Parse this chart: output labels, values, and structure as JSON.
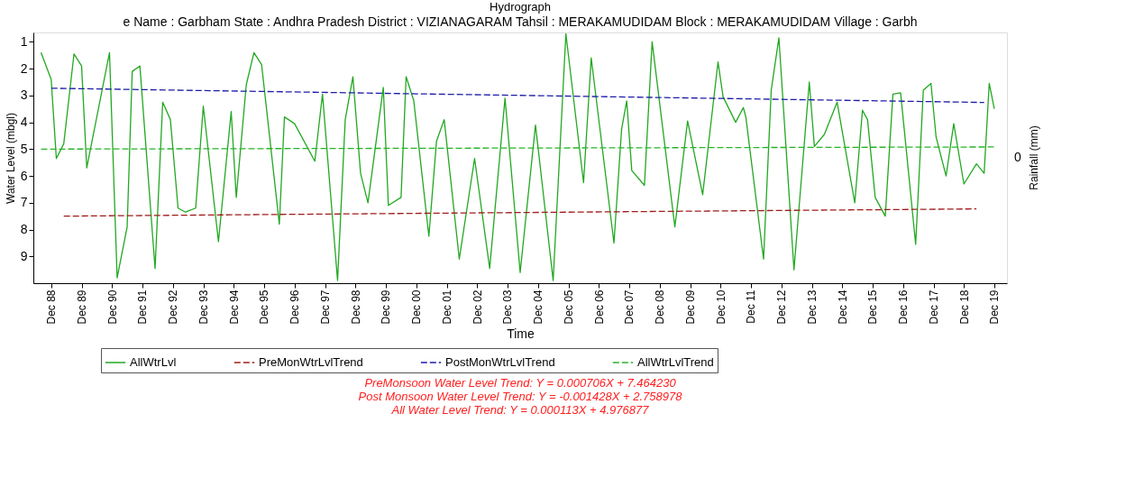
{
  "chart_data": {
    "type": "line",
    "title": "Hydrograph",
    "subtitle": "e Name : Garbham  State : Andhra Pradesh District : VIZIANAGARAM  Tahsil : MERAKAMUDIDAM  Block : MERAKAMUDIDAM Village : Garbh",
    "xlabel": "Time",
    "ylabel": "Water Level (mbgl)",
    "y2label": "Rainfall (mm)",
    "ylim": [
      10,
      0.65
    ],
    "yticks": [
      1,
      2,
      3,
      4,
      5,
      6,
      7,
      8,
      9
    ],
    "xlim": [
      "1988-05",
      "2020-05"
    ],
    "xticks": [
      {
        "value": "1988-12",
        "label": "Dec 88"
      },
      {
        "value": "1989-12",
        "label": "Dec 89"
      },
      {
        "value": "1990-12",
        "label": "Dec 90"
      },
      {
        "value": "1991-12",
        "label": "Dec 91"
      },
      {
        "value": "1992-12",
        "label": "Dec 92"
      },
      {
        "value": "1993-12",
        "label": "Dec 93"
      },
      {
        "value": "1994-12",
        "label": "Dec 94"
      },
      {
        "value": "1995-12",
        "label": "Dec 95"
      },
      {
        "value": "1996-12",
        "label": "Dec 96"
      },
      {
        "value": "1997-12",
        "label": "Dec 97"
      },
      {
        "value": "1998-12",
        "label": "Dec 98"
      },
      {
        "value": "1999-12",
        "label": "Dec 99"
      },
      {
        "value": "2000-12",
        "label": "Dec 00"
      },
      {
        "value": "2001-12",
        "label": "Dec 01"
      },
      {
        "value": "2002-12",
        "label": "Dec 02"
      },
      {
        "value": "2003-12",
        "label": "Dec 03"
      },
      {
        "value": "2004-12",
        "label": "Dec 04"
      },
      {
        "value": "2005-12",
        "label": "Dec 05"
      },
      {
        "value": "2006-12",
        "label": "Dec 06"
      },
      {
        "value": "2007-12",
        "label": "Dec 07"
      },
      {
        "value": "2008-12",
        "label": "Dec 08"
      },
      {
        "value": "2009-12",
        "label": "Dec 09"
      },
      {
        "value": "2010-12",
        "label": "Dec 10"
      },
      {
        "value": "2011-12",
        "label": "Dec 11"
      },
      {
        "value": "2012-12",
        "label": "Dec 12"
      },
      {
        "value": "2013-12",
        "label": "Dec 13"
      },
      {
        "value": "2014-12",
        "label": "Dec 14"
      },
      {
        "value": "2015-12",
        "label": "Dec 15"
      },
      {
        "value": "2016-12",
        "label": "Dec 16"
      },
      {
        "value": "2017-12",
        "label": "Dec 17"
      },
      {
        "value": "2018-12",
        "label": "Dec 18"
      },
      {
        "value": "2019-12",
        "label": "Dec 19"
      }
    ],
    "grid": false,
    "legend": "bottom",
    "marker": "none",
    "series": [
      {
        "name": "AllWtrLvl",
        "color": "#22a822",
        "line_style": "solid",
        "x": [
          "1988-08",
          "1988-12",
          "1989-02",
          "1989-05",
          "1989-09",
          "1989-12",
          "1990-02",
          "1990-11",
          "1991-02",
          "1991-06",
          "1991-08",
          "1991-11",
          "1992-05",
          "1992-08",
          "1992-11",
          "1993-02",
          "1993-05",
          "1993-09",
          "1993-12",
          "1994-06",
          "1994-11",
          "1995-01",
          "1995-05",
          "1995-08",
          "1995-11",
          "1996-06",
          "1996-08",
          "1996-12",
          "1997-08",
          "1997-11",
          "1998-05",
          "1998-08",
          "1998-11",
          "1999-02",
          "1999-05",
          "1999-11",
          "2000-01",
          "2000-06",
          "2000-08",
          "2000-11",
          "2001-05",
          "2001-08",
          "2001-11",
          "2002-05",
          "2002-11",
          "2003-05",
          "2003-11",
          "2004-05",
          "2004-11",
          "2005-06",
          "2005-11",
          "2006-06",
          "2006-09",
          "2007-06",
          "2007-09",
          "2007-11",
          "2008-01",
          "2008-06",
          "2008-09",
          "2009-06",
          "2009-11",
          "2010-05",
          "2010-11",
          "2011-01",
          "2011-06",
          "2011-09",
          "2011-10",
          "2012-05",
          "2012-08",
          "2012-11",
          "2013-05",
          "2013-11",
          "2014-01",
          "2014-05",
          "2014-10",
          "2015-05",
          "2015-08",
          "2015-10",
          "2016-01",
          "2016-05",
          "2016-08",
          "2016-11",
          "2017-05",
          "2017-08",
          "2017-11",
          "2018-01",
          "2018-05",
          "2018-08",
          "2018-12",
          "2019-05",
          "2019-08",
          "2019-10",
          "2019-12"
        ],
        "values": [
          1.4,
          2.4,
          5.35,
          4.8,
          1.45,
          1.9,
          5.7,
          1.4,
          9.8,
          7.9,
          2.1,
          1.9,
          9.45,
          3.25,
          3.9,
          7.2,
          7.35,
          7.2,
          3.4,
          8.45,
          3.6,
          6.8,
          2.6,
          1.4,
          1.85,
          7.8,
          3.8,
          4.05,
          5.45,
          2.95,
          9.9,
          3.9,
          2.3,
          5.9,
          7.0,
          2.7,
          7.1,
          6.8,
          2.3,
          3.2,
          8.25,
          4.7,
          3.9,
          9.1,
          5.35,
          9.45,
          3.1,
          9.6,
          4.1,
          9.9,
          0.7,
          6.25,
          1.6,
          8.5,
          4.25,
          3.2,
          5.8,
          6.35,
          1.0,
          7.9,
          3.95,
          6.7,
          1.75,
          3.05,
          4.0,
          3.45,
          3.8,
          9.1,
          2.8,
          0.85,
          9.5,
          2.5,
          4.9,
          4.45,
          3.25,
          7.0,
          3.55,
          3.9,
          6.8,
          7.5,
          2.95,
          2.9,
          8.55,
          2.8,
          2.55,
          4.55,
          6.0,
          4.05,
          6.3,
          5.55,
          5.9,
          2.55,
          3.5
        ]
      },
      {
        "name": "PreMonWtrLvlTrend",
        "color": "#a01c1c",
        "line_style": "dashed",
        "x": [
          "1989-05",
          "2019-05"
        ],
        "values": [
          7.5,
          7.23
        ]
      },
      {
        "name": "PostMonWtrLvlTrend",
        "color": "#1c1ca8",
        "line_style": "dashed",
        "x": [
          "1988-12",
          "2019-08"
        ],
        "values": [
          2.73,
          3.26
        ]
      },
      {
        "name": "AllWtrLvlTrend",
        "color": "#28b428",
        "line_style": "dashed",
        "x": [
          "1988-08",
          "2019-12"
        ],
        "values": [
          5.0,
          4.92
        ]
      }
    ],
    "annotations": [
      "0",
      "PreMonsoon Water Level Trend: Y = 0.000706X + 7.464230",
      "Post Monsoon Water Level Trend: Y = -0.001428X + 2.758978",
      "All Water Level Trend: Y = 0.000113X + 4.976877"
    ]
  }
}
